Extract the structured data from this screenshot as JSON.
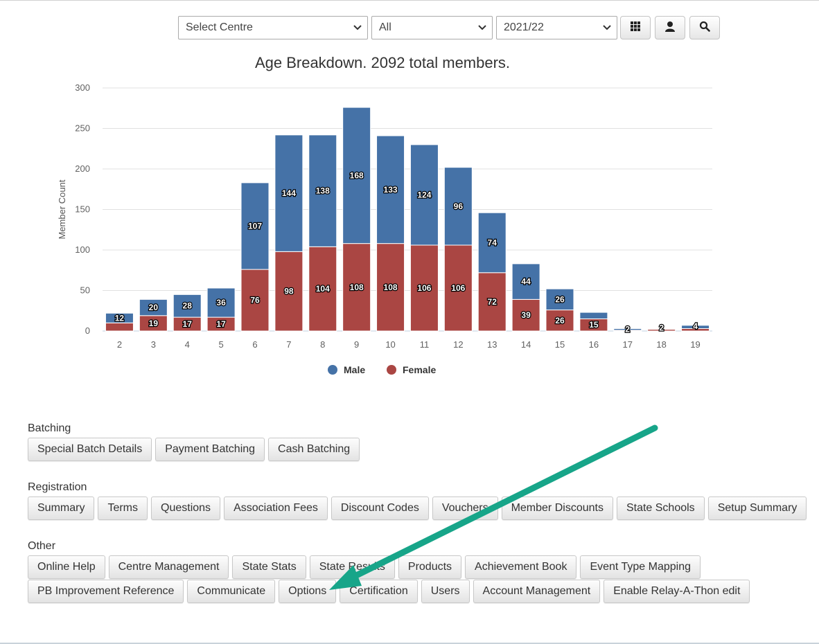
{
  "filters": {
    "centre": "Select Centre",
    "category": "All",
    "season": "2021/22"
  },
  "toolbar_icons": [
    "grid-icon",
    "user-icon",
    "search-icon"
  ],
  "chart_data": {
    "type": "bar",
    "stacked": true,
    "title": "Age Breakdown. 2092 total members.",
    "ylabel": "Member Count",
    "xlabel": "",
    "ylim": [
      0,
      300
    ],
    "yticks": [
      "0",
      "50",
      "100",
      "150",
      "200",
      "250",
      "300"
    ],
    "categories": [
      "2",
      "3",
      "4",
      "5",
      "6",
      "7",
      "8",
      "9",
      "10",
      "11",
      "12",
      "13",
      "14",
      "15",
      "16",
      "17",
      "18",
      "19"
    ],
    "series": [
      {
        "name": "Female",
        "color": "#aa4643",
        "values": [
          10,
          19,
          17,
          17,
          76,
          98,
          104,
          108,
          108,
          106,
          106,
          72,
          39,
          26,
          15,
          1,
          2,
          3
        ]
      },
      {
        "name": "Male",
        "color": "#4572a7",
        "values": [
          12,
          20,
          28,
          36,
          107,
          144,
          138,
          168,
          133,
          124,
          96,
          74,
          44,
          26,
          8,
          2,
          0,
          4
        ]
      }
    ],
    "data_labels": {
      "Female": [
        "",
        "19",
        "17",
        "17",
        "76",
        "98",
        "104",
        "108",
        "108",
        "106",
        "106",
        "72",
        "39",
        "26",
        "15",
        "",
        "2",
        ""
      ],
      "Male": [
        "12",
        "20",
        "28",
        "36",
        "107",
        "144",
        "138",
        "168",
        "133",
        "124",
        "96",
        "74",
        "44",
        "26",
        "",
        "2",
        "",
        "4"
      ]
    },
    "legend": {
      "position": "bottom-center",
      "items": [
        "Male",
        "Female"
      ]
    },
    "grid": true
  },
  "sections": [
    {
      "label": "Batching",
      "buttons": [
        "Special Batch Details",
        "Payment Batching",
        "Cash Batching"
      ]
    },
    {
      "label": "Registration",
      "buttons": [
        "Summary",
        "Terms",
        "Questions",
        "Association Fees",
        "Discount Codes",
        "Vouchers",
        "Member Discounts",
        "State Schools",
        "Setup Summary"
      ]
    },
    {
      "label": "Other",
      "buttons": [
        "Online Help",
        "Centre Management",
        "State Stats",
        "State Results",
        "Products",
        "Achievement Book",
        "Event Type Mapping"
      ]
    },
    {
      "label": "",
      "buttons": [
        "PB Improvement Reference",
        "Communicate",
        "Options",
        "Certification",
        "Users",
        "Account Management",
        "Enable Relay-A-Thon edit"
      ]
    }
  ],
  "annotation": {
    "color": "#17a589",
    "type": "arrow",
    "points_to": "Options"
  }
}
